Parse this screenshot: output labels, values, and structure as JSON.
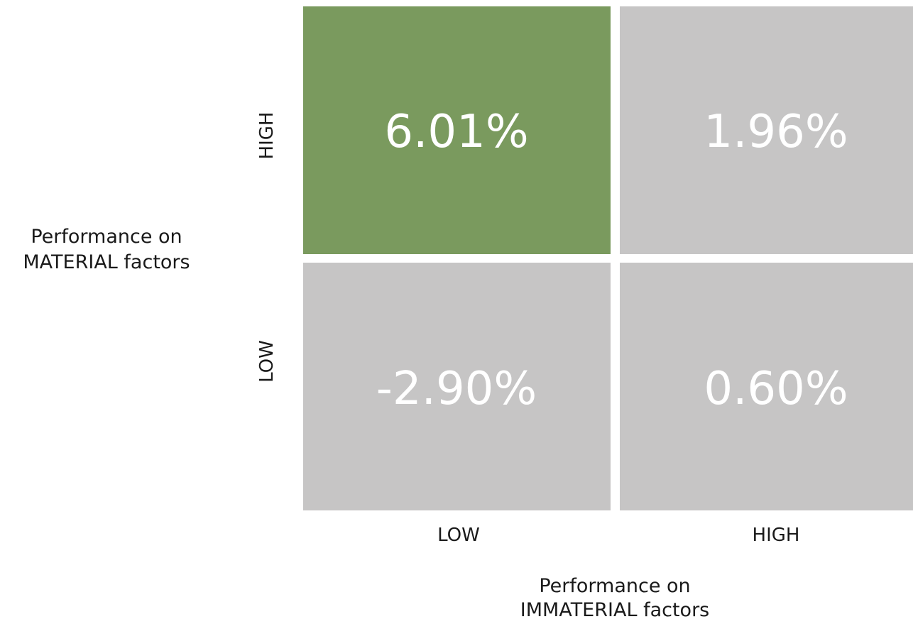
{
  "chart_data": {
    "type": "heatmap",
    "title": "",
    "x_axis": {
      "label_lines": [
        "Performance on",
        "IMMATERIAL factors"
      ],
      "categories": [
        "LOW",
        "HIGH"
      ]
    },
    "y_axis": {
      "label_lines": [
        "Performance on",
        "MATERIAL factors"
      ],
      "categories": [
        "HIGH",
        "LOW"
      ]
    },
    "cells": [
      {
        "x": "LOW",
        "y": "HIGH",
        "value": 6.01,
        "label": "6.01%",
        "highlight": true
      },
      {
        "x": "HIGH",
        "y": "HIGH",
        "value": 1.96,
        "label": "1.96%",
        "highlight": false
      },
      {
        "x": "LOW",
        "y": "LOW",
        "value": -2.9,
        "label": "-2.90%",
        "highlight": false
      },
      {
        "x": "HIGH",
        "y": "LOW",
        "value": 0.6,
        "label": "0.60%",
        "highlight": false
      }
    ],
    "colors": {
      "highlight": "#7a9a5e",
      "default": "#c6c5c5",
      "cell_text": "#ffffff",
      "axis_text": "#1a1a1a"
    },
    "grid": false,
    "legend": "none"
  }
}
